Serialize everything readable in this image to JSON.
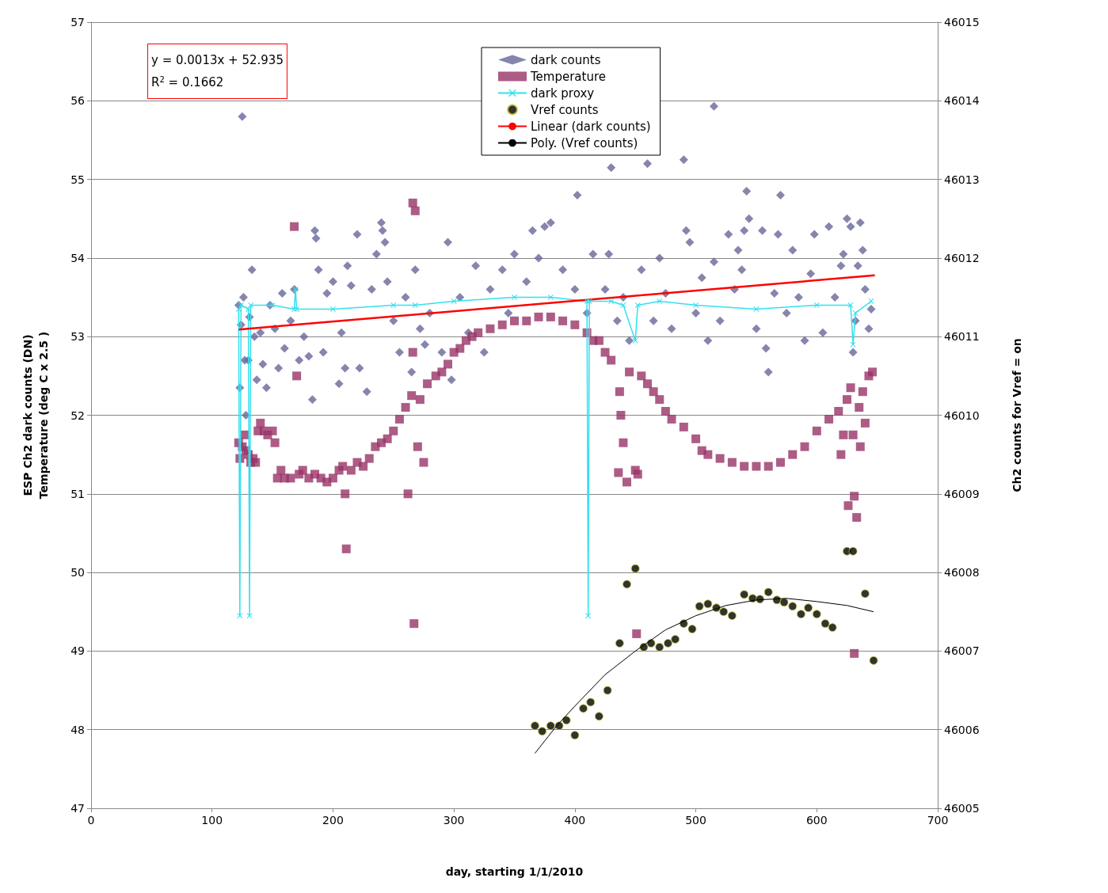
{
  "chart_data": {
    "type": "scatter",
    "xlabel": "day, starting 1/1/2010",
    "ylabel": "ESP Ch2 dark counts (DN)\nTemperature (deg C x 2.5 )",
    "y2label": "Ch2 counts for Vref = on",
    "annotations": [
      "y = 0.0013x + 52.935\nR$^{2}$ = 0.1662"
    ],
    "xlim": [
      0,
      700
    ],
    "xticks": [
      0,
      100,
      200,
      300,
      400,
      500,
      600,
      700
    ],
    "ylim": [
      47,
      57
    ],
    "yticks": [
      47,
      48,
      49,
      50,
      51,
      52,
      53,
      54,
      55,
      56,
      57
    ],
    "y2lim": [
      46005,
      46015
    ],
    "y2ticks": [
      46005,
      46006,
      46007,
      46008,
      46009,
      46010,
      46011,
      46012,
      46013,
      46014,
      46015
    ],
    "grid": "y",
    "legend": "top right",
    "series": [
      {
        "name": "dark counts",
        "marker": "diamond",
        "color": "#666699",
        "x": [
          122,
          123,
          124,
          125,
          126,
          127,
          128,
          130,
          131,
          133,
          135,
          137,
          140,
          142,
          145,
          148,
          152,
          155,
          158,
          160,
          165,
          168,
          172,
          176,
          180,
          183,
          185,
          186,
          188,
          192,
          195,
          200,
          205,
          207,
          210,
          212,
          215,
          220,
          222,
          228,
          232,
          236,
          240,
          241,
          243,
          245,
          250,
          255,
          260,
          265,
          268,
          272,
          276,
          280,
          290,
          295,
          298,
          305,
          312,
          318,
          325,
          330,
          340,
          345,
          350,
          360,
          365,
          370,
          375,
          380,
          390,
          400,
          402,
          410,
          415,
          425,
          428,
          430,
          435,
          440,
          445,
          455,
          460,
          465,
          470,
          475,
          480,
          490,
          492,
          495,
          500,
          505,
          510,
          515,
          515,
          520,
          527,
          532,
          535,
          538,
          540,
          542,
          544,
          550,
          555,
          558,
          560,
          565,
          568,
          570,
          575,
          580,
          585,
          590,
          595,
          598,
          605,
          610,
          615,
          620,
          622,
          625,
          628,
          630,
          632,
          634,
          636,
          638,
          640,
          643,
          645
        ],
        "values": [
          53.4,
          52.35,
          53.15,
          55.8,
          53.5,
          52.7,
          52.0,
          52.7,
          53.25,
          53.85,
          53.0,
          52.45,
          53.05,
          52.65,
          52.35,
          53.4,
          53.1,
          52.6,
          53.55,
          52.85,
          53.2,
          53.6,
          52.7,
          53.0,
          52.75,
          52.2,
          54.35,
          54.25,
          53.85,
          52.8,
          53.55,
          53.7,
          52.4,
          53.05,
          52.6,
          53.9,
          53.65,
          54.3,
          52.6,
          52.3,
          53.6,
          54.05,
          54.45,
          54.35,
          54.2,
          53.7,
          53.2,
          52.8,
          53.5,
          52.55,
          53.85,
          53.1,
          52.9,
          53.3,
          52.8,
          54.2,
          52.45,
          53.5,
          53.05,
          53.9,
          52.8,
          53.6,
          53.85,
          53.3,
          54.05,
          53.7,
          54.35,
          54.0,
          54.4,
          54.45,
          53.85,
          53.6,
          54.8,
          53.3,
          54.05,
          53.6,
          54.05,
          55.15,
          53.2,
          53.5,
          52.95,
          53.85,
          55.2,
          53.2,
          54.0,
          53.55,
          53.1,
          55.25,
          54.35,
          54.2,
          53.3,
          53.75,
          52.95,
          53.95,
          55.93,
          53.2,
          54.3,
          53.6,
          54.1,
          53.85,
          54.35,
          54.85,
          54.5,
          53.1,
          54.35,
          52.85,
          52.55,
          53.55,
          54.3,
          54.8,
          53.3,
          54.1,
          53.5,
          52.95,
          53.8,
          54.3,
          53.05,
          54.4,
          53.5,
          53.9,
          54.05,
          54.5,
          54.4,
          52.8,
          53.2,
          53.9,
          54.45,
          54.1,
          53.6,
          53.1,
          53.35
        ]
      },
      {
        "name": "Temperature",
        "marker": "square",
        "color": "#993366",
        "x": [
          122,
          123,
          125,
          127,
          128,
          130,
          132,
          134,
          136,
          138,
          140,
          143,
          146,
          150,
          152,
          154,
          157,
          160,
          165,
          168,
          170,
          172,
          175,
          180,
          185,
          190,
          195,
          200,
          205,
          208,
          210,
          211,
          215,
          220,
          225,
          230,
          235,
          240,
          245,
          250,
          255,
          260,
          262,
          265,
          266,
          268,
          266,
          267,
          270,
          272,
          275,
          278,
          285,
          290,
          295,
          300,
          305,
          310,
          315,
          320,
          330,
          340,
          350,
          360,
          370,
          380,
          390,
          400,
          410,
          415,
          420,
          425,
          430,
          437,
          438,
          440,
          436,
          443,
          445,
          450,
          452,
          451,
          455,
          460,
          465,
          470,
          475,
          480,
          490,
          500,
          505,
          510,
          520,
          530,
          540,
          550,
          560,
          570,
          580,
          590,
          600,
          610,
          618,
          620,
          622,
          625,
          626,
          628,
          630,
          631,
          631,
          633,
          635,
          636,
          638,
          640,
          643,
          646
        ],
        "values": [
          51.65,
          51.45,
          51.6,
          51.75,
          51.55,
          51.5,
          51.4,
          51.45,
          51.4,
          51.8,
          51.9,
          51.8,
          51.75,
          51.8,
          51.65,
          51.2,
          51.3,
          51.2,
          51.2,
          54.4,
          52.5,
          51.25,
          51.3,
          51.2,
          51.25,
          51.2,
          51.15,
          51.2,
          51.3,
          51.35,
          51.0,
          50.3,
          51.3,
          51.4,
          51.35,
          51.45,
          51.6,
          51.65,
          51.7,
          51.8,
          51.95,
          52.1,
          51.0,
          52.25,
          54.7,
          54.6,
          52.8,
          49.35,
          51.6,
          52.2,
          51.4,
          52.4,
          52.5,
          52.55,
          52.65,
          52.8,
          52.85,
          52.95,
          53.0,
          53.05,
          53.1,
          53.15,
          53.2,
          53.2,
          53.25,
          53.25,
          53.2,
          53.15,
          53.05,
          52.95,
          52.95,
          52.8,
          52.7,
          52.3,
          52.0,
          51.65,
          51.27,
          51.15,
          52.55,
          51.3,
          51.25,
          49.22,
          52.5,
          52.4,
          52.3,
          52.2,
          52.05,
          51.95,
          51.85,
          51.7,
          51.55,
          51.5,
          51.45,
          51.4,
          51.35,
          51.35,
          51.35,
          51.4,
          51.5,
          51.6,
          51.8,
          51.95,
          52.05,
          51.5,
          51.75,
          52.2,
          50.85,
          52.35,
          51.75,
          50.97,
          48.97,
          50.7,
          52.1,
          51.6,
          52.3,
          51.9,
          52.5,
          52.55
        ]
      },
      {
        "name": "dark proxy",
        "type": "line",
        "marker": "cross",
        "color": "#33e0f0",
        "x": [
          122,
          123,
          124,
          130,
          131,
          132,
          150,
          168,
          169,
          170,
          200,
          250,
          268,
          300,
          350,
          380,
          410,
          411,
          412,
          430,
          440,
          450,
          452,
          470,
          500,
          550,
          600,
          628,
          630,
          632,
          645
        ],
        "values": [
          53.35,
          49.45,
          53.4,
          53.35,
          49.45,
          53.4,
          53.4,
          53.35,
          53.6,
          53.35,
          53.35,
          53.4,
          53.4,
          53.45,
          53.5,
          53.5,
          53.45,
          49.45,
          53.45,
          53.45,
          53.4,
          52.95,
          53.4,
          53.45,
          53.4,
          53.35,
          53.4,
          53.4,
          52.9,
          53.3,
          53.45
        ]
      },
      {
        "name": "Vref counts",
        "marker": "circle",
        "color": "#000000",
        "axis": "y2",
        "x": [
          367,
          373,
          380,
          387,
          393,
          400,
          407,
          413,
          420,
          427,
          437,
          443,
          450,
          457,
          463,
          470,
          477,
          483,
          490,
          497,
          503,
          510,
          517,
          523,
          530,
          540,
          547,
          553,
          560,
          567,
          573,
          580,
          587,
          593,
          600,
          607,
          613,
          625,
          630,
          640,
          647
        ],
        "values": [
          46006.05,
          46005.98,
          46006.05,
          46006.05,
          46006.12,
          46005.93,
          46006.27,
          46006.35,
          46006.17,
          46006.5,
          46007.1,
          46007.85,
          46008.05,
          46007.05,
          46007.1,
          46007.05,
          46007.1,
          46007.15,
          46007.35,
          46007.28,
          46007.57,
          46007.6,
          46007.55,
          46007.5,
          46007.45,
          46007.72,
          46007.67,
          46007.66,
          46007.75,
          46007.65,
          46007.62,
          46007.57,
          46007.47,
          46007.55,
          46007.47,
          46007.35,
          46007.3,
          46008.27,
          46008.27,
          46007.73,
          46006.88
        ]
      },
      {
        "name": "Linear (dark counts)",
        "type": "line",
        "marker": "none",
        "color": "#ff0000",
        "x": [
          122,
          648
        ],
        "values": [
          53.09,
          53.78
        ]
      },
      {
        "name": "Poly. (Vref counts)",
        "type": "line",
        "marker": "none",
        "color": "#000000",
        "axis": "y2",
        "x": [
          367,
          385,
          400,
          425,
          450,
          475,
          500,
          525,
          550,
          575,
          600,
          625,
          647
        ],
        "values": [
          46005.7,
          46006.05,
          46006.3,
          46006.7,
          46007.0,
          46007.27,
          46007.45,
          46007.58,
          46007.65,
          46007.67,
          46007.63,
          46007.58,
          46007.5
        ]
      }
    ]
  }
}
